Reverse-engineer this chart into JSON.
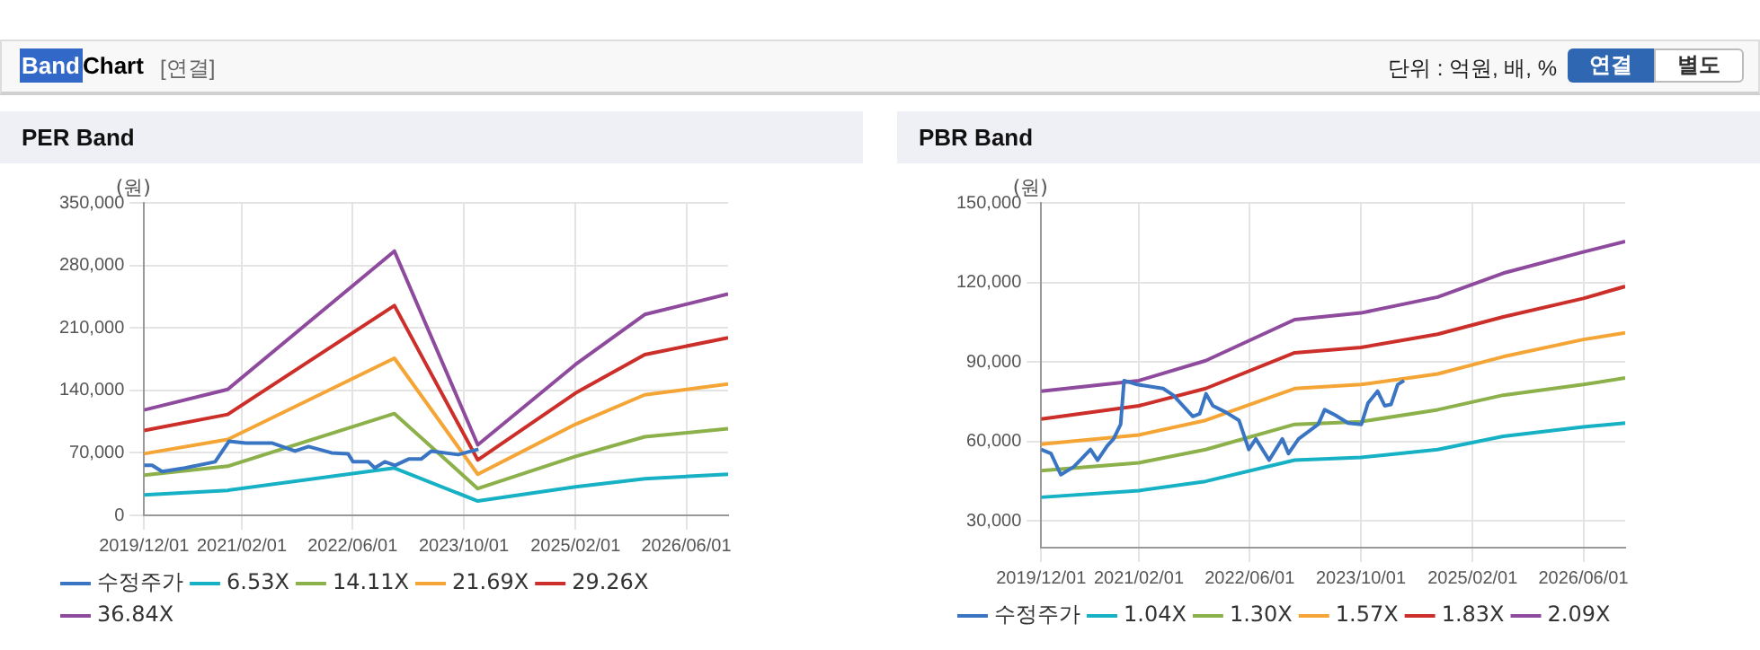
{
  "chart_data": [
    {
      "type": "line",
      "title": "PER Band",
      "ylabel": "(원)",
      "annotations": [
        "Band",
        "Chart",
        "[연결]",
        "단위 : 억원, 배, %",
        "연결",
        "별도"
      ],
      "xlim": [
        "2019-12-01",
        "2026-12-01"
      ],
      "xticks": [
        {
          "value": "2019-12-01",
          "label": "2019/12/01"
        },
        {
          "value": "2021-02-01",
          "label": "2021/02/01"
        },
        {
          "value": "2022-06-01",
          "label": "2022/06/01"
        },
        {
          "value": "2023-10-01",
          "label": "2023/10/01"
        },
        {
          "value": "2025-02-01",
          "label": "2025/02/01"
        },
        {
          "value": "2026-06-01",
          "label": "2026/06/01"
        }
      ],
      "ylim": [
        0,
        350000
      ],
      "yticks": [
        {
          "value": 0,
          "label": "0"
        },
        {
          "value": 70000,
          "label": "70,000"
        },
        {
          "value": 140000,
          "label": "140,000"
        },
        {
          "value": 210000,
          "label": "210,000"
        },
        {
          "value": 280000,
          "label": "280,000"
        },
        {
          "value": 350000,
          "label": "350,000"
        }
      ],
      "grid": true,
      "legend": "bottom",
      "marker": "none",
      "line_style": "solid",
      "x": [
        "2019-12-01",
        "2020-12-01",
        "2022-12-01",
        "2023-12-01",
        "2025-02-01",
        "2025-12-01",
        "2026-12-01"
      ],
      "series": [
        {
          "name": "수정주가",
          "color": "#3a75c4",
          "x": [
            "2019-12-01",
            "2020-01-05",
            "2020-02-18",
            "2020-05-28",
            "2020-10-07",
            "2020-12-07",
            "2021-02-18",
            "2021-06-12",
            "2021-09-22",
            "2021-11-20",
            "2022-03-01",
            "2022-05-12",
            "2022-06-03",
            "2022-08-09",
            "2022-09-06",
            "2022-10-20",
            "2022-12-04",
            "2023-02-01",
            "2023-03-28",
            "2023-05-12",
            "2023-09-06",
            "2023-12-04"
          ],
          "values": [
            56000,
            56000,
            49000,
            53000,
            60000,
            83000,
            81000,
            81000,
            72000,
            77000,
            70000,
            69000,
            60000,
            60000,
            53000,
            60000,
            56000,
            63000,
            63000,
            72000,
            68000,
            74000
          ]
        },
        {
          "name": "6.53X",
          "color": "#17b1c5",
          "values": [
            23000,
            28000,
            53000,
            16000,
            32000,
            41000,
            46000
          ]
        },
        {
          "name": "14.11X",
          "color": "#8cb04a",
          "values": [
            45000,
            55000,
            114000,
            30000,
            66000,
            88000,
            97000
          ]
        },
        {
          "name": "21.69X",
          "color": "#f4a535",
          "values": [
            69000,
            85000,
            176000,
            46000,
            102000,
            135000,
            147000
          ]
        },
        {
          "name": "29.26X",
          "color": "#cc2f2a",
          "values": [
            95000,
            113000,
            235000,
            62000,
            137000,
            180000,
            199000
          ]
        },
        {
          "name": "36.84X",
          "color": "#8e4b9d",
          "values": [
            118000,
            141000,
            296000,
            79000,
            169000,
            225000,
            248000
          ]
        }
      ]
    },
    {
      "type": "line",
      "title": "PBR Band",
      "ylabel": "(원)",
      "xlim": [
        "2019-12-01",
        "2026-12-01"
      ],
      "xticks": [
        {
          "value": "2019-12-01",
          "label": "2019/12/01"
        },
        {
          "value": "2021-02-01",
          "label": "2021/02/01"
        },
        {
          "value": "2022-06-01",
          "label": "2022/06/01"
        },
        {
          "value": "2023-10-01",
          "label": "2023/10/01"
        },
        {
          "value": "2025-02-01",
          "label": "2025/02/01"
        },
        {
          "value": "2026-06-01",
          "label": "2026/06/01"
        }
      ],
      "ylim": [
        20000,
        150000
      ],
      "yticks": [
        {
          "value": 30000,
          "label": "30,000"
        },
        {
          "value": 60000,
          "label": "60,000"
        },
        {
          "value": 90000,
          "label": "90,000"
        },
        {
          "value": 120000,
          "label": "120,000"
        },
        {
          "value": 150000,
          "label": "150,000"
        }
      ],
      "grid": true,
      "legend": "bottom",
      "marker": "none",
      "line_style": "solid",
      "x": [
        "2019-12-01",
        "2021-02-01",
        "2021-11-20",
        "2022-12-15",
        "2023-10-01",
        "2024-09-01",
        "2025-06-15",
        "2026-06-01",
        "2026-12-01"
      ],
      "series": [
        {
          "name": "수정주가",
          "color": "#3a75c4",
          "x": [
            "2019-12-01",
            "2020-01-13",
            "2020-02-25",
            "2020-04-22",
            "2020-07-04",
            "2020-08-04",
            "2020-09-16",
            "2020-10-13",
            "2020-11-13",
            "2020-11-28",
            "2021-01-25",
            "2021-05-18",
            "2021-07-01",
            "2021-09-25",
            "2021-10-25",
            "2021-11-22",
            "2021-12-22",
            "2022-02-18",
            "2022-04-15",
            "2022-05-28",
            "2022-06-28",
            "2022-08-25",
            "2022-10-22",
            "2022-11-18",
            "2023-01-01",
            "2023-03-28",
            "2023-04-25",
            "2023-06-10",
            "2023-08-06",
            "2023-10-03",
            "2023-11-01",
            "2023-12-13",
            "2024-01-13",
            "2024-02-10",
            "2024-03-10",
            "2024-04-07"
          ],
          "values": [
            57000,
            55500,
            47500,
            50500,
            57000,
            53000,
            58500,
            61000,
            66500,
            83000,
            81500,
            80000,
            77500,
            69500,
            70500,
            78000,
            73500,
            71000,
            68000,
            57000,
            61000,
            53000,
            61000,
            55500,
            61000,
            66500,
            72000,
            70000,
            67000,
            66500,
            74500,
            79000,
            73500,
            74000,
            81500,
            83000
          ]
        },
        {
          "name": "1.04X",
          "color": "#17b1c5",
          "values": [
            39000,
            41500,
            45000,
            53000,
            54000,
            57000,
            62000,
            65500,
            67000
          ]
        },
        {
          "name": "1.30X",
          "color": "#8cb04a",
          "values": [
            49000,
            52000,
            57000,
            66500,
            67500,
            72000,
            77500,
            81500,
            84000
          ]
        },
        {
          "name": "1.57X",
          "color": "#f4a535",
          "values": [
            59000,
            62500,
            68000,
            80000,
            81500,
            85500,
            92000,
            98500,
            101000
          ]
        },
        {
          "name": "1.83X",
          "color": "#cc2f2a",
          "values": [
            68500,
            73500,
            80000,
            93500,
            95500,
            100500,
            107000,
            114000,
            118500
          ]
        },
        {
          "name": "2.09X",
          "color": "#8e4b9d",
          "values": [
            79000,
            83000,
            90500,
            106000,
            108500,
            114500,
            123500,
            131500,
            135500
          ]
        }
      ]
    }
  ]
}
